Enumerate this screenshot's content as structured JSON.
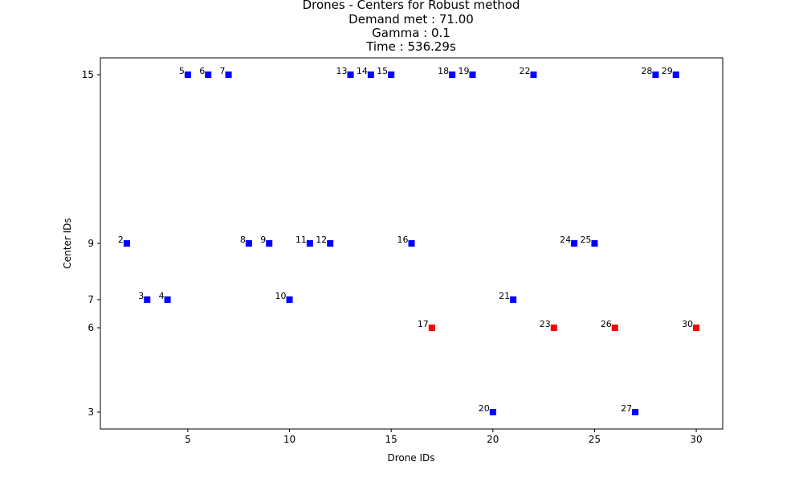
{
  "chart_data": {
    "type": "scatter",
    "title_lines": [
      "Drones - Centers for Robust method",
      "Demand met : 71.00",
      "Gamma : 0.1",
      "Time : 536.29s"
    ],
    "xlabel": "Drone IDs",
    "ylabel": "Center IDs",
    "xlim": [
      0.7,
      31.3
    ],
    "ylim": [
      2.4,
      15.6
    ],
    "x_ticks": [
      5,
      10,
      15,
      20,
      25,
      30
    ],
    "y_ticks": [
      3,
      6,
      7,
      9,
      15
    ],
    "grid": false,
    "legend": "none",
    "colors": {
      "assigned": "#0000ff",
      "highlighted": "#ff0000"
    },
    "points": [
      {
        "x": 2,
        "y": 9,
        "label": "2",
        "group": "assigned"
      },
      {
        "x": 3,
        "y": 7,
        "label": "3",
        "group": "assigned"
      },
      {
        "x": 4,
        "y": 7,
        "label": "4",
        "group": "assigned"
      },
      {
        "x": 5,
        "y": 15,
        "label": "5",
        "group": "assigned"
      },
      {
        "x": 6,
        "y": 15,
        "label": "6",
        "group": "assigned"
      },
      {
        "x": 7,
        "y": 15,
        "label": "7",
        "group": "assigned"
      },
      {
        "x": 8,
        "y": 9,
        "label": "8",
        "group": "assigned"
      },
      {
        "x": 9,
        "y": 9,
        "label": "9",
        "group": "assigned"
      },
      {
        "x": 10,
        "y": 7,
        "label": "10",
        "group": "assigned"
      },
      {
        "x": 11,
        "y": 9,
        "label": "11",
        "group": "assigned"
      },
      {
        "x": 12,
        "y": 9,
        "label": "12",
        "group": "assigned"
      },
      {
        "x": 13,
        "y": 15,
        "label": "13",
        "group": "assigned"
      },
      {
        "x": 14,
        "y": 15,
        "label": "14",
        "group": "assigned"
      },
      {
        "x": 15,
        "y": 15,
        "label": "15",
        "group": "assigned"
      },
      {
        "x": 16,
        "y": 9,
        "label": "16",
        "group": "assigned"
      },
      {
        "x": 17,
        "y": 6,
        "label": "17",
        "group": "highlighted"
      },
      {
        "x": 18,
        "y": 15,
        "label": "18",
        "group": "assigned"
      },
      {
        "x": 19,
        "y": 15,
        "label": "19",
        "group": "assigned"
      },
      {
        "x": 20,
        "y": 3,
        "label": "20",
        "group": "assigned"
      },
      {
        "x": 21,
        "y": 7,
        "label": "21",
        "group": "assigned"
      },
      {
        "x": 22,
        "y": 15,
        "label": "22",
        "group": "assigned"
      },
      {
        "x": 23,
        "y": 6,
        "label": "23",
        "group": "highlighted"
      },
      {
        "x": 24,
        "y": 9,
        "label": "24",
        "group": "assigned"
      },
      {
        "x": 25,
        "y": 9,
        "label": "25",
        "group": "assigned"
      },
      {
        "x": 26,
        "y": 6,
        "label": "26",
        "group": "highlighted"
      },
      {
        "x": 27,
        "y": 3,
        "label": "27",
        "group": "assigned"
      },
      {
        "x": 28,
        "y": 15,
        "label": "28",
        "group": "assigned"
      },
      {
        "x": 29,
        "y": 15,
        "label": "29",
        "group": "assigned"
      },
      {
        "x": 30,
        "y": 6,
        "label": "30",
        "group": "highlighted"
      }
    ]
  }
}
